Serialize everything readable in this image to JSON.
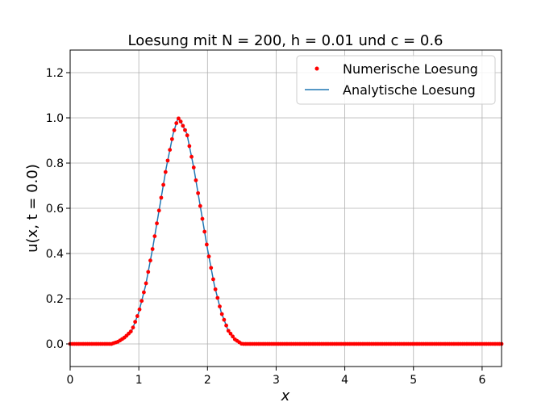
{
  "chart_data": {
    "type": "line",
    "title": "Loesung mit N = 200, h = 0.01 und c = 0.6",
    "xlabel": "x",
    "ylabel": "u(x, t = 0.0)",
    "xlim": [
      0,
      6.283
    ],
    "ylim": [
      -0.1,
      1.3
    ],
    "xticks": [
      "0",
      "1",
      "2",
      "3",
      "4",
      "5",
      "6"
    ],
    "yticks": [
      "0.0",
      "0.2",
      "0.4",
      "0.6",
      "0.8",
      "1.0",
      "1.2"
    ],
    "grid": true,
    "legend_position": "top-right",
    "colors": {
      "numeric": "#ff0000",
      "analytic": "#1f77b4"
    },
    "series": [
      {
        "name": "Numerische Loesung",
        "kind": "scatter",
        "description": "200 red dot markers sampling the same pulse on a uniform x grid from 0 to 2π",
        "x": [
          0.0,
          0.25,
          0.5,
          0.6,
          0.7,
          0.8,
          0.9,
          1.0,
          1.1,
          1.2,
          1.3,
          1.4,
          1.5,
          1.5708,
          1.6,
          1.7,
          1.8,
          1.9,
          2.0,
          2.1,
          2.2,
          2.3,
          2.4,
          2.5,
          2.6,
          3.0,
          4.0,
          5.0,
          6.0,
          6.283
        ],
        "y": [
          0.0,
          0.0,
          0.0,
          0.0,
          0.01,
          0.03,
          0.06,
          0.14,
          0.26,
          0.42,
          0.6,
          0.78,
          0.93,
          1.0,
          0.99,
          0.93,
          0.78,
          0.6,
          0.42,
          0.26,
          0.14,
          0.06,
          0.02,
          0.0,
          0.0,
          0.0,
          0.0,
          0.0,
          0.0,
          0.0
        ]
      },
      {
        "name": "Analytische Loesung",
        "kind": "line",
        "x": [
          0.0,
          0.5,
          0.6,
          0.7,
          0.8,
          0.9,
          1.0,
          1.1,
          1.2,
          1.3,
          1.4,
          1.5,
          1.5708,
          1.6,
          1.7,
          1.8,
          1.9,
          2.0,
          2.1,
          2.2,
          2.3,
          2.4,
          2.5,
          3.0,
          6.283
        ],
        "y": [
          0.0,
          0.0,
          0.0,
          0.01,
          0.03,
          0.06,
          0.14,
          0.26,
          0.42,
          0.6,
          0.78,
          0.93,
          1.0,
          0.99,
          0.93,
          0.78,
          0.6,
          0.42,
          0.26,
          0.14,
          0.06,
          0.02,
          0.0,
          0.0,
          0.0
        ]
      }
    ]
  }
}
